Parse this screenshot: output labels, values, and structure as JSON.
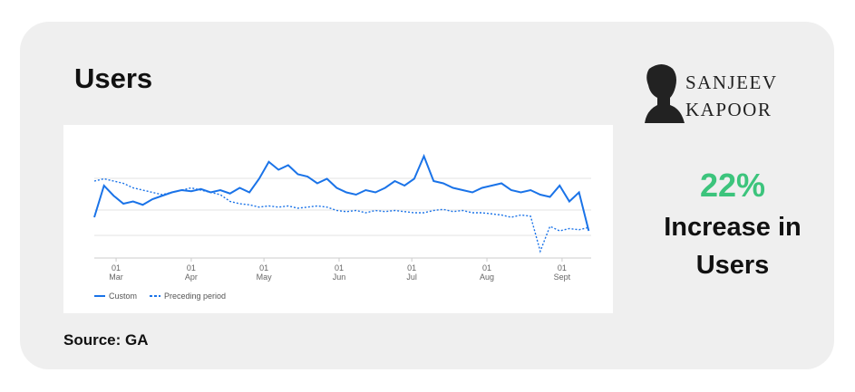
{
  "header": {
    "title": "Users",
    "source": "Source: GA"
  },
  "brand": {
    "line1": "SANJEEV",
    "line2": "KAPOOR"
  },
  "stat": {
    "value": "22%",
    "caption": "Increase in Users"
  },
  "chart_data": {
    "type": "line",
    "x": [
      -9,
      -5,
      -1,
      3,
      7,
      11,
      15,
      19,
      23,
      27,
      31,
      35,
      39,
      43,
      47,
      51,
      55,
      59,
      63,
      67,
      71,
      75,
      79,
      83,
      87,
      91,
      95,
      99,
      103,
      107,
      111,
      115,
      119,
      123,
      127,
      131,
      135,
      139,
      143,
      147,
      151,
      155,
      159,
      163,
      167,
      171,
      175,
      179,
      183,
      187,
      191,
      195
    ],
    "xlim": [
      -9,
      196
    ],
    "xticks": [
      {
        "value": 0,
        "label": "01\nMar"
      },
      {
        "value": 31,
        "label": "01\nApr"
      },
      {
        "value": 61,
        "label": "01\nMay"
      },
      {
        "value": 92,
        "label": "01\nJun"
      },
      {
        "value": 122,
        "label": "01\nJul"
      },
      {
        "value": 153,
        "label": "01\nAug"
      },
      {
        "value": 184,
        "label": "01\nSept"
      }
    ],
    "ylim": [
      0,
      100
    ],
    "series": [
      {
        "name": "Custom",
        "color": "#1a73e8",
        "dash": false,
        "values": [
          36,
          64,
          55,
          48,
          50,
          47,
          52,
          55,
          58,
          60,
          59,
          61,
          58,
          60,
          57,
          62,
          58,
          70,
          85,
          78,
          82,
          74,
          72,
          66,
          70,
          62,
          58,
          56,
          60,
          58,
          62,
          68,
          64,
          70,
          90,
          68,
          66,
          62,
          60,
          58,
          62,
          64,
          66,
          60,
          58,
          60,
          56,
          54,
          64,
          50,
          58,
          24
        ]
      },
      {
        "name": "Preceding period",
        "color": "#1a73e8",
        "dash": true,
        "values": [
          68,
          70,
          68,
          66,
          62,
          60,
          58,
          56,
          58,
          60,
          62,
          60,
          58,
          56,
          50,
          48,
          47,
          45,
          46,
          45,
          46,
          44,
          45,
          46,
          45,
          42,
          41,
          42,
          40,
          42,
          41,
          42,
          41,
          40,
          40,
          42,
          43,
          41,
          42,
          40,
          40,
          39,
          38,
          36,
          38,
          37,
          6,
          28,
          24,
          26,
          25,
          27
        ]
      }
    ]
  }
}
